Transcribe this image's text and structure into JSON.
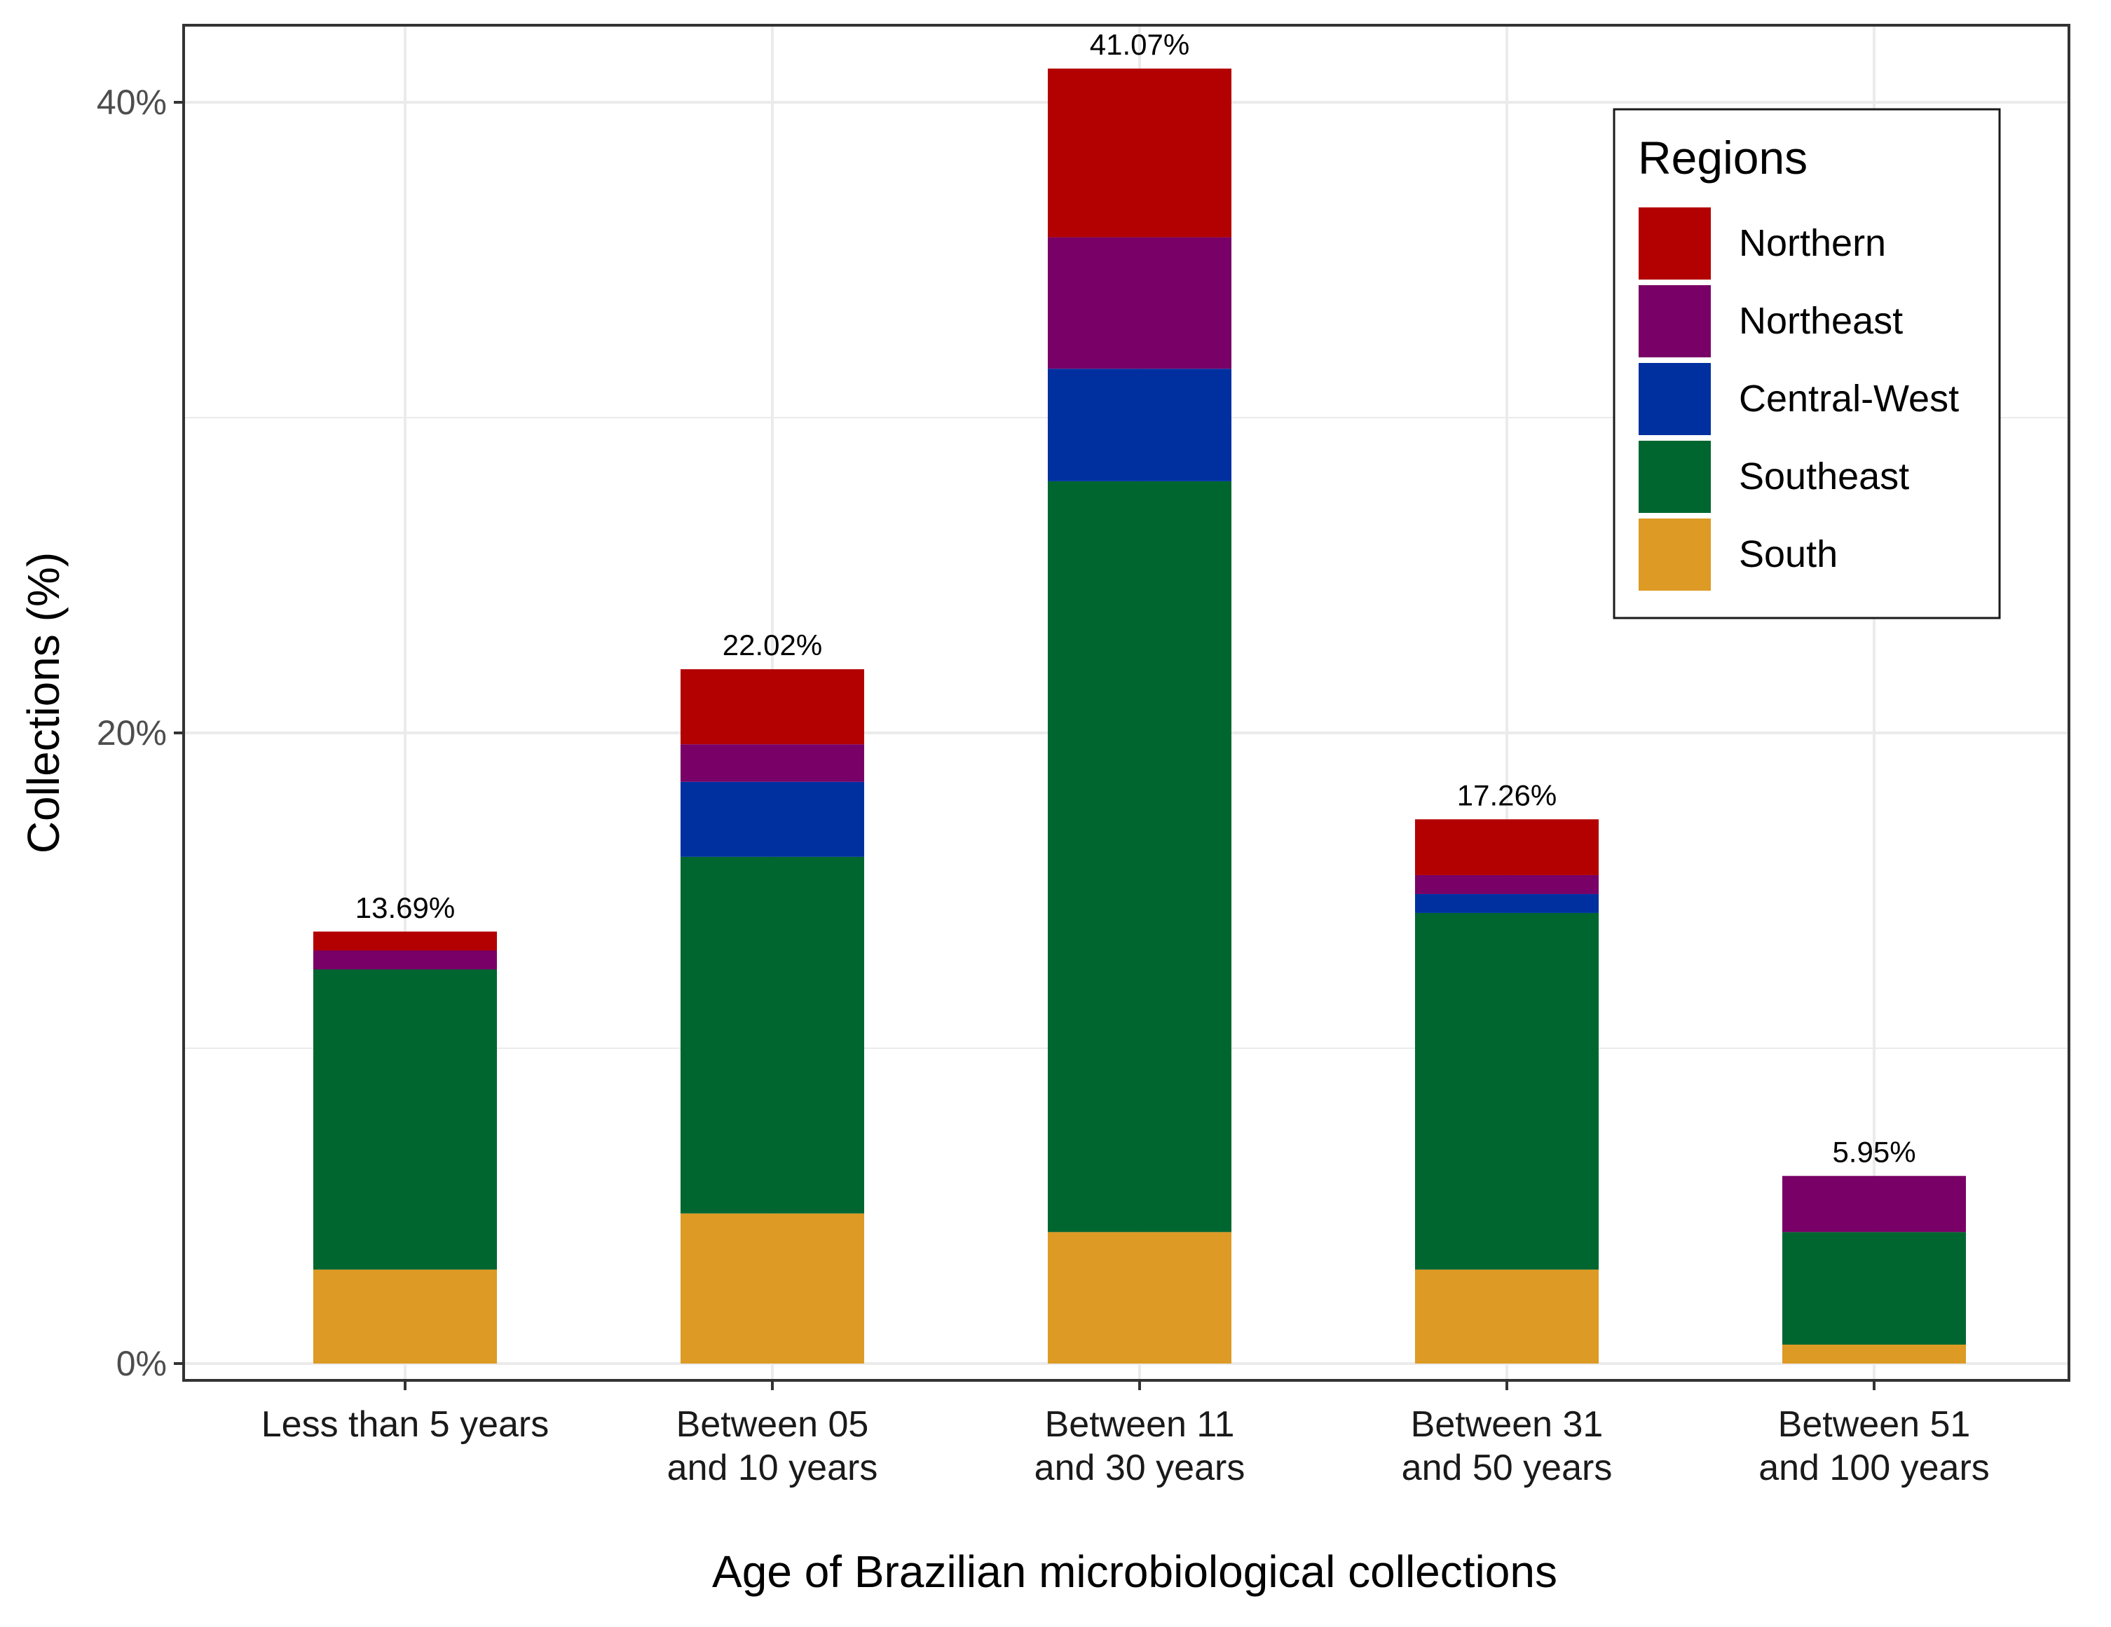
{
  "chart_data": {
    "type": "bar",
    "stacked": true,
    "xlabel": "Age of Brazilian microbiological collections",
    "ylabel": "Collections (%)",
    "ylim": [
      0,
      43
    ],
    "yticks": [
      0,
      20,
      40
    ],
    "ytick_labels": [
      "0%",
      "20%",
      "40%"
    ],
    "grid": true,
    "categories": [
      [
        "Less than 5 years"
      ],
      [
        "Between 05",
        "and 10 years"
      ],
      [
        "Between 11",
        "and 30 years"
      ],
      [
        "Between 31",
        "and 50 years"
      ],
      [
        "Between 51",
        "and 100 years"
      ]
    ],
    "series": [
      {
        "name": "South",
        "color": "#DD9A24",
        "values": [
          2.98,
          4.76,
          4.17,
          2.98,
          0.6
        ]
      },
      {
        "name": "Southeast",
        "color": "#006630",
        "values": [
          9.52,
          11.31,
          23.81,
          11.31,
          3.57
        ]
      },
      {
        "name": "Central-West",
        "color": "#0030A0",
        "values": [
          0,
          2.38,
          3.57,
          0.6,
          0
        ]
      },
      {
        "name": "Northeast",
        "color": "#780066",
        "values": [
          0.6,
          1.19,
          4.17,
          0.6,
          1.78
        ]
      },
      {
        "name": "Northern",
        "color": "#B30000",
        "values": [
          0.6,
          2.38,
          5.35,
          1.77,
          0
        ]
      }
    ],
    "totals": [
      13.69,
      22.02,
      41.07,
      17.26,
      5.95
    ],
    "total_labels": [
      "13.69%",
      "22.02%",
      "41.07%",
      "17.26%",
      "5.95%"
    ],
    "legend": {
      "title": "Regions",
      "position": "top-right",
      "entries": [
        "Northern",
        "Northeast",
        "Central-West",
        "Southeast",
        "South"
      ]
    }
  }
}
